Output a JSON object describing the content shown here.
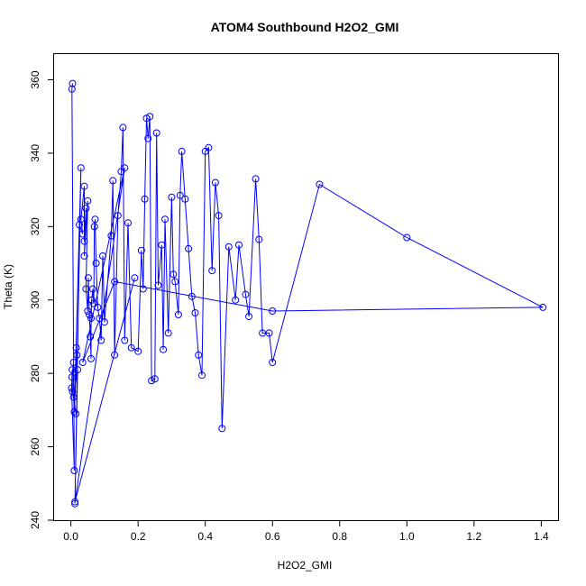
{
  "chart_data": {
    "type": "line",
    "title": "ATOM4 Southbound H2O2_GMI",
    "xlabel": "H2O2_GMI",
    "ylabel": "Theta (K)",
    "xlim": [
      -0.05,
      1.45
    ],
    "ylim": [
      240,
      367
    ],
    "xticks": [
      "0.0",
      "0.2",
      "0.4",
      "0.6",
      "0.8",
      "1.0",
      "1.2",
      "1.4"
    ],
    "yticks": [
      "240",
      "260",
      "280",
      "300",
      "320",
      "340",
      "360"
    ],
    "grid": false,
    "legend": "none",
    "color": "#0000ff",
    "series": [
      {
        "marker": "open-circle",
        "x": [
          0.005,
          0.003,
          0.01,
          0.002,
          0.004,
          0.003,
          0.008,
          0.005,
          0.015,
          0.008,
          0.02,
          0.012,
          0.03,
          0.01,
          0.018,
          0.016,
          0.025,
          0.035,
          0.03,
          0.04,
          0.04,
          0.045,
          0.04,
          0.05,
          0.045,
          0.05,
          0.052,
          0.055,
          0.058,
          0.06,
          0.06,
          0.062,
          0.065,
          0.068,
          0.07,
          0.072,
          0.075,
          0.08,
          0.085,
          0.09,
          0.095,
          0.1,
          0.12,
          0.125,
          0.13,
          0.14,
          0.15,
          0.155,
          0.16,
          0.17,
          0.18,
          0.2,
          0.21,
          0.215,
          0.22,
          0.225,
          0.23,
          0.235,
          0.24,
          0.25,
          0.255,
          0.26,
          0.27,
          0.275,
          0.28,
          0.29,
          0.3,
          0.305,
          0.31,
          0.32,
          0.325,
          0.33,
          0.34,
          0.35,
          0.36,
          0.37,
          0.38,
          0.39,
          0.4,
          0.41,
          0.42,
          0.43,
          0.44,
          0.45,
          0.47,
          0.49,
          0.5,
          0.52,
          0.53,
          0.55,
          0.56,
          0.57,
          0.59,
          0.6,
          0.74,
          1.0,
          1.405,
          0.6,
          0.13,
          0.035,
          0.16,
          0.012,
          0.19
        ],
        "y": [
          359,
          357.5,
          253.5,
          276,
          281,
          279,
          283,
          275,
          269,
          273.5,
          281,
          244.5,
          336,
          269.5,
          285,
          287,
          320.5,
          318,
          322,
          331,
          316,
          325,
          312,
          327,
          303,
          297,
          306,
          296,
          290,
          284,
          295,
          300,
          303,
          299,
          320,
          322,
          310,
          298,
          295,
          289,
          312,
          294,
          317.5,
          332.5,
          285,
          323,
          335,
          347,
          289,
          321,
          287,
          286,
          313.5,
          303,
          327.5,
          349.5,
          344,
          350,
          278,
          278.5,
          345.5,
          304,
          315,
          286.5,
          322,
          291,
          328,
          307,
          305,
          296,
          328.5,
          340.5,
          327.5,
          314,
          301,
          296.5,
          285,
          279.5,
          340.5,
          341.5,
          308,
          332,
          323,
          265,
          314.5,
          300,
          315,
          301.5,
          295.5,
          333,
          316.5,
          291,
          291,
          283,
          331.5,
          317,
          298,
          297,
          305,
          283,
          336,
          245,
          306
        ]
      }
    ]
  }
}
